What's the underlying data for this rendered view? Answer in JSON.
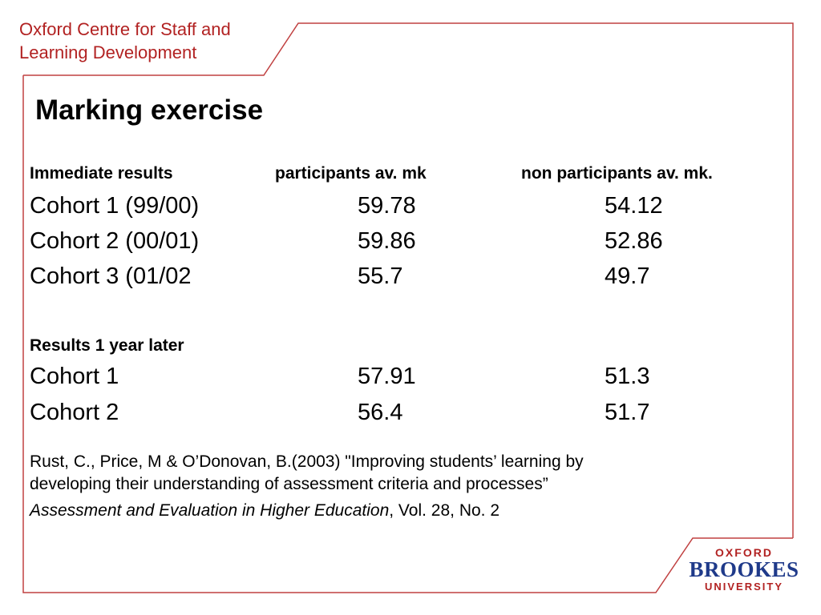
{
  "header": {
    "org_line1": "Oxford Centre for Staff and",
    "org_line2": "Learning Development"
  },
  "slide": {
    "title": "Marking exercise",
    "immediate": {
      "heading": "Immediate results",
      "col1": "participants av. mk",
      "col2": "non participants av. mk.",
      "rows": [
        {
          "label": "Cohort 1 (99/00)",
          "participants": "59.78",
          "non_participants": "54.12"
        },
        {
          "label": "Cohort 2 (00/01)",
          "participants": "59.86",
          "non_participants": "52.86"
        },
        {
          "label": "Cohort 3 (01/02",
          "participants": "55.7",
          "non_participants": "49.7"
        }
      ]
    },
    "later": {
      "heading": "Results 1 year later",
      "rows": [
        {
          "label": "Cohort 1",
          "participants": "57.91",
          "non_participants": "51.3"
        },
        {
          "label": "Cohort 2",
          "participants": "56.4",
          "non_participants": "51.7"
        }
      ]
    },
    "citation": {
      "line1": "Rust, C., Price, M & O’Donovan, B.(2003) \"Improving students’ learning by",
      "line2": "developing their understanding of assessment criteria and processes”",
      "journal": "Assessment and Evaluation in Higher Education",
      "details": ", Vol. 28, No. 2"
    }
  },
  "logo": {
    "line1": "OXFORD",
    "line2": "BROOKES",
    "line3": "UNIVERSITY"
  },
  "colors": {
    "accent": "#b22222",
    "brand_blue": "#1f3a8a"
  }
}
